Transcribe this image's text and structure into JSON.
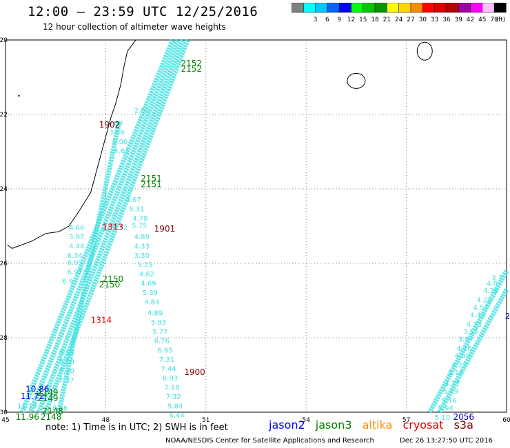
{
  "header": {
    "title": "12:00 – 23:59 UTC 12/25/2016",
    "subtitle": "12 hour collection of altimeter wave heights"
  },
  "scale": {
    "unit": "(ft)",
    "bins": [
      {
        "color": "#7f7f7f",
        "label": ""
      },
      {
        "color": "#00ffff",
        "label": "3"
      },
      {
        "color": "#00c8ff",
        "label": "6"
      },
      {
        "color": "#0064ff",
        "label": "9"
      },
      {
        "color": "#0000ff",
        "label": "12"
      },
      {
        "color": "#00ff00",
        "label": "15"
      },
      {
        "color": "#00c800",
        "label": "18"
      },
      {
        "color": "#009600",
        "label": "21"
      },
      {
        "color": "#ffff00",
        "label": "24"
      },
      {
        "color": "#ffd700",
        "label": "27"
      },
      {
        "color": "#ff8c00",
        "label": "30"
      },
      {
        "color": "#ff0000",
        "label": "33"
      },
      {
        "color": "#dc0000",
        "label": "36"
      },
      {
        "color": "#b40000",
        "label": "39"
      },
      {
        "color": "#a000a0",
        "label": "42"
      },
      {
        "color": "#ff00ff",
        "label": "45"
      },
      {
        "color": "#ffc0ff",
        "label": "70"
      },
      {
        "color": "#000000",
        "label": ""
      }
    ]
  },
  "map": {
    "lon_range": [
      45,
      60
    ],
    "lat_range": [
      -30,
      -20
    ],
    "lon_ticks": [
      {
        "value": 45,
        "label": "45"
      },
      {
        "value": 48,
        "label": "48"
      },
      {
        "value": 51,
        "label": "51"
      },
      {
        "value": 54,
        "label": "54"
      },
      {
        "value": 57,
        "label": "57"
      },
      {
        "value": 60,
        "label": "60"
      }
    ],
    "lat_ticks": [
      {
        "value": -20,
        "label": "-20"
      },
      {
        "value": -22,
        "label": "-22"
      },
      {
        "value": -24,
        "label": "-24"
      },
      {
        "value": -26,
        "label": "-26"
      },
      {
        "value": -28,
        "label": "-28"
      },
      {
        "value": -30,
        "label": "-30"
      }
    ],
    "track_color": "#40e0e0",
    "labels_cyan": [
      {
        "text": "6.60",
        "lon": 48.05,
        "lat": -22.3
      },
      {
        "text": "3.69",
        "lon": 48.1,
        "lat": -22.55
      },
      {
        "text": "5.00",
        "lon": 48.2,
        "lat": -22.8
      },
      {
        "text": "4.61",
        "lon": 48.25,
        "lat": -23.05
      },
      {
        "text": "2.66",
        "lon": 48.85,
        "lat": -21.95
      },
      {
        "text": "4.67",
        "lon": 48.6,
        "lat": -24.35
      },
      {
        "text": "5.31",
        "lon": 48.7,
        "lat": -24.6
      },
      {
        "text": "4.78",
        "lon": 48.8,
        "lat": -24.85
      },
      {
        "text": "5.75",
        "lon": 48.78,
        "lat": -25.05
      },
      {
        "text": "5.72",
        "lon": 48.2,
        "lat": -25.1
      },
      {
        "text": "4.66",
        "lon": 46.9,
        "lat": -25.1
      },
      {
        "text": "3.97",
        "lon": 46.9,
        "lat": -25.35
      },
      {
        "text": "4.44",
        "lon": 46.9,
        "lat": -25.6
      },
      {
        "text": "6.34",
        "lon": 46.85,
        "lat": -25.85
      },
      {
        "text": "6.95",
        "lon": 46.85,
        "lat": -26.05
      },
      {
        "text": "6.92",
        "lon": 46.85,
        "lat": -26.3
      },
      {
        "text": "6.9",
        "lon": 46.7,
        "lat": -26.55
      },
      {
        "text": "4.89",
        "lon": 48.85,
        "lat": -25.35
      },
      {
        "text": "4.33",
        "lon": 48.85,
        "lat": -25.6
      },
      {
        "text": "3.30",
        "lon": 48.85,
        "lat": -25.85
      },
      {
        "text": "5.25",
        "lon": 48.95,
        "lat": -26.1
      },
      {
        "text": "4.62",
        "lon": 49.0,
        "lat": -26.35
      },
      {
        "text": "4.69",
        "lon": 49.05,
        "lat": -26.6
      },
      {
        "text": "5.39",
        "lon": 49.1,
        "lat": -26.85
      },
      {
        "text": "4.84",
        "lon": 49.15,
        "lat": -27.1
      },
      {
        "text": "4.89",
        "lon": 49.25,
        "lat": -27.4
      },
      {
        "text": "5.83",
        "lon": 49.35,
        "lat": -27.65
      },
      {
        "text": "5.77",
        "lon": 49.4,
        "lat": -27.9
      },
      {
        "text": "6.76",
        "lon": 49.45,
        "lat": -28.15
      },
      {
        "text": "6.65",
        "lon": 49.55,
        "lat": -28.4
      },
      {
        "text": "7.31",
        "lon": 49.6,
        "lat": -28.65
      },
      {
        "text": "7.44",
        "lon": 49.65,
        "lat": -28.9
      },
      {
        "text": "6.93",
        "lon": 49.7,
        "lat": -29.15
      },
      {
        "text": "7.18",
        "lon": 49.75,
        "lat": -29.4
      },
      {
        "text": "7.32",
        "lon": 49.8,
        "lat": -29.65
      },
      {
        "text": "5.84",
        "lon": 49.85,
        "lat": -29.9
      },
      {
        "text": "6.44",
        "lon": 49.9,
        "lat": -30.15
      },
      {
        "text": "8.13",
        "lon": 46.6,
        "lat": -28.45
      },
      {
        "text": "8.20",
        "lon": 46.6,
        "lat": -28.7
      },
      {
        "text": "7.30",
        "lon": 46.6,
        "lat": -28.95
      },
      {
        "text": "7.37",
        "lon": 46.6,
        "lat": -29.2
      },
      {
        "text": "8.16",
        "lon": 46.4,
        "lat": -29.95
      },
      {
        "text": "11.19",
        "lon": 45.35,
        "lat": -29.9
      },
      {
        "text": "5.10",
        "lon": 57.85,
        "lat": -30.2
      },
      {
        "text": "5.94",
        "lon": 57.95,
        "lat": -29.95
      },
      {
        "text": "5.16",
        "lon": 58.05,
        "lat": -29.75
      },
      {
        "text": "5.19",
        "lon": 58.1,
        "lat": -29.5
      },
      {
        "text": "4.77",
        "lon": 58.15,
        "lat": -29.3
      },
      {
        "text": "5.14",
        "lon": 58.25,
        "lat": -29.0
      },
      {
        "text": "4.27",
        "lon": 58.35,
        "lat": -28.8
      },
      {
        "text": "4.00",
        "lon": 58.45,
        "lat": -28.55
      },
      {
        "text": "4.16",
        "lon": 58.5,
        "lat": -28.35
      },
      {
        "text": "3.97",
        "lon": 58.55,
        "lat": -28.1
      },
      {
        "text": "3.55",
        "lon": 58.7,
        "lat": -27.9
      },
      {
        "text": "4.23",
        "lon": 58.8,
        "lat": -27.7
      },
      {
        "text": "4.49",
        "lon": 58.9,
        "lat": -27.45
      },
      {
        "text": "4.57",
        "lon": 59.0,
        "lat": -27.25
      },
      {
        "text": "4.22",
        "lon": 59.1,
        "lat": -27.05
      },
      {
        "text": "4.38",
        "lon": 59.3,
        "lat": -26.8
      },
      {
        "text": "4.8",
        "lon": 59.4,
        "lat": -26.6
      },
      {
        "text": "3.7",
        "lon": 59.55,
        "lat": -26.45
      }
    ],
    "labels_other": [
      {
        "text": "2152",
        "lon": 50.25,
        "lat": -20.7,
        "color": "#008000"
      },
      {
        "text": "2152",
        "lon": 50.25,
        "lat": -20.85,
        "color": "#008000"
      },
      {
        "text": "1902",
        "lon": 47.8,
        "lat": -22.35,
        "color": "#800000"
      },
      {
        "text": "2151",
        "lon": 49.05,
        "lat": -23.8,
        "color": "#008000"
      },
      {
        "text": "2151",
        "lon": 49.05,
        "lat": -23.95,
        "color": "#008000"
      },
      {
        "text": "1313",
        "lon": 47.9,
        "lat": -25.1,
        "color": "#e00000"
      },
      {
        "text": "1901",
        "lon": 49.45,
        "lat": -25.15,
        "color": "#800000"
      },
      {
        "text": "2150",
        "lon": 47.9,
        "lat": -26.5,
        "color": "#008000"
      },
      {
        "text": "2150",
        "lon": 47.8,
        "lat": -26.65,
        "color": "#008000"
      },
      {
        "text": "1314",
        "lon": 47.55,
        "lat": -27.6,
        "color": "#e00000"
      },
      {
        "text": "1900",
        "lon": 50.35,
        "lat": -29.0,
        "color": "#800000"
      },
      {
        "text": "2149",
        "lon": 45.95,
        "lat": -29.55,
        "color": "#008000"
      },
      {
        "text": "2149",
        "lon": 45.95,
        "lat": -29.7,
        "color": "#008000"
      },
      {
        "text": "10.86",
        "lon": 45.6,
        "lat": -29.45,
        "color": "#0000ff"
      },
      {
        "text": "11.72",
        "lon": 45.45,
        "lat": -29.65,
        "color": "#0000ff"
      },
      {
        "text": "2148",
        "lon": 46.1,
        "lat": -30.05,
        "color": "#008000"
      },
      {
        "text": "2148",
        "lon": 46.05,
        "lat": -30.2,
        "color": "#008000"
      },
      {
        "text": "11.96",
        "lon": 45.3,
        "lat": -30.2,
        "color": "#008000"
      },
      {
        "text": "2056",
        "lon": 58.4,
        "lat": -30.2,
        "color": "#0000c0"
      },
      {
        "text": "2",
        "lon": 59.95,
        "lat": -27.5,
        "color": "#0000c0"
      }
    ]
  },
  "legend": {
    "items": [
      {
        "text": "jason2",
        "color": "#0000ff"
      },
      {
        "text": "jason3",
        "color": "#008000"
      },
      {
        "text": "altika",
        "color": "#ff8c00"
      },
      {
        "text": "cryosat",
        "color": "#e00000"
      },
      {
        "text": "s3a",
        "color": "#800000"
      }
    ]
  },
  "footer": {
    "note": "note: 1) Time is in UTC; 2) SWH is in feet",
    "credit": "NOAA/NESDIS Center for Satellite Applications and Research",
    "stamp": "Dec 26 13:27:50 UTC 2016"
  }
}
